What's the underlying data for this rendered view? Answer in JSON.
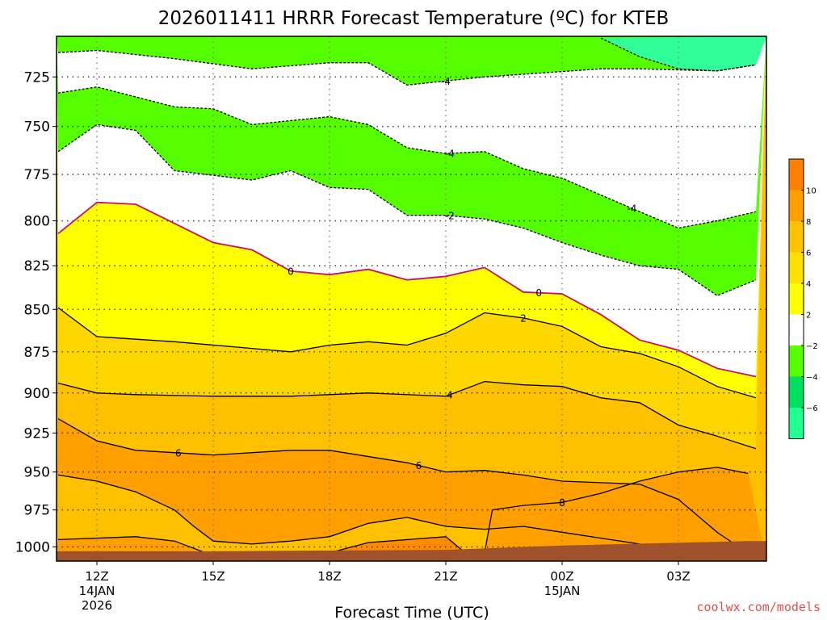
{
  "chart_data": {
    "type": "heatmap",
    "title": "2026011411 HRRR Forecast Temperature (ºC) for KTEB",
    "xlabel": "Forecast Time (UTC)",
    "ylabel": "",
    "x_ticks": [
      {
        "hour": 0,
        "label": "12Z",
        "sublabels": [
          "14JAN",
          "2026"
        ]
      },
      {
        "hour": 3,
        "label": "15Z",
        "sublabels": []
      },
      {
        "hour": 6,
        "label": "18Z",
        "sublabels": []
      },
      {
        "hour": 9,
        "label": "21Z",
        "sublabels": []
      },
      {
        "hour": 12,
        "label": "00Z",
        "sublabels": [
          "15JAN"
        ]
      },
      {
        "hour": 15,
        "label": "03Z",
        "sublabels": []
      }
    ],
    "xlim": [
      -1,
      17
    ],
    "y_ticks": [
      725,
      750,
      775,
      800,
      825,
      850,
      875,
      900,
      925,
      950,
      975,
      1000
    ],
    "ylim": [
      706,
      1008
    ],
    "y_scale": "log",
    "grid": true,
    "series": [
      {
        "name": "-4",
        "points": [
          [
            -1,
            713
          ],
          [
            0,
            712
          ],
          [
            2,
            716
          ],
          [
            4,
            721
          ],
          [
            6,
            718
          ],
          [
            7,
            718
          ],
          [
            8,
            729
          ],
          [
            9,
            727
          ],
          [
            10,
            725
          ],
          [
            13,
            721
          ],
          [
            14,
            721
          ],
          [
            16,
            722
          ],
          [
            17,
            719
          ]
        ]
      },
      {
        "name": "-4",
        "points": [
          [
            13,
            706
          ],
          [
            14,
            715
          ],
          [
            15,
            721
          ],
          [
            16,
            722
          ],
          [
            17,
            719
          ]
        ]
      },
      {
        "name": "-4",
        "points": [
          [
            -1,
            733
          ],
          [
            0,
            730
          ],
          [
            2,
            740
          ],
          [
            3,
            741
          ],
          [
            4,
            749
          ],
          [
            5,
            747
          ],
          [
            6,
            745
          ],
          [
            7,
            749
          ],
          [
            8,
            761
          ],
          [
            9,
            764
          ],
          [
            10,
            763
          ],
          [
            11,
            772
          ],
          [
            12,
            777
          ],
          [
            13,
            786
          ],
          [
            14,
            795
          ],
          [
            15,
            804
          ],
          [
            16,
            800
          ],
          [
            17,
            795
          ]
        ]
      },
      {
        "name": "-2",
        "points": [
          [
            -1,
            763
          ],
          [
            0,
            749
          ],
          [
            1,
            752
          ],
          [
            2,
            773
          ],
          [
            4,
            778
          ],
          [
            5,
            773
          ],
          [
            6,
            782
          ],
          [
            7,
            783
          ],
          [
            8,
            797
          ],
          [
            9,
            797
          ],
          [
            10,
            799
          ],
          [
            11,
            804
          ],
          [
            12,
            812
          ],
          [
            13,
            819
          ],
          [
            14,
            825
          ],
          [
            15,
            827
          ],
          [
            16,
            842
          ],
          [
            17,
            833
          ]
        ]
      },
      {
        "name": "0",
        "points": [
          [
            -1,
            807
          ],
          [
            0,
            790
          ],
          [
            1,
            791
          ],
          [
            3,
            812
          ],
          [
            4,
            816
          ],
          [
            5,
            828
          ],
          [
            6,
            830
          ],
          [
            7,
            827
          ],
          [
            8,
            833
          ],
          [
            9,
            831
          ],
          [
            10,
            826
          ],
          [
            11,
            840
          ],
          [
            12,
            841
          ],
          [
            13,
            853
          ],
          [
            14,
            868
          ],
          [
            15,
            874
          ],
          [
            16,
            885
          ],
          [
            17,
            890
          ]
        ]
      },
      {
        "name": "2",
        "points": [
          [
            -1,
            849
          ],
          [
            0,
            866
          ],
          [
            2,
            869
          ],
          [
            4,
            873
          ],
          [
            5,
            875
          ],
          [
            6,
            871
          ],
          [
            7,
            869
          ],
          [
            8,
            871
          ],
          [
            9,
            864
          ],
          [
            10,
            852
          ],
          [
            11,
            855
          ],
          [
            12,
            860
          ],
          [
            13,
            872
          ],
          [
            14,
            876
          ],
          [
            15,
            884
          ],
          [
            16,
            896
          ],
          [
            17,
            903
          ]
        ]
      },
      {
        "name": "4",
        "points": [
          [
            -1,
            894
          ],
          [
            0,
            900
          ],
          [
            1,
            901
          ],
          [
            3,
            902
          ],
          [
            5,
            902
          ],
          [
            7,
            900
          ],
          [
            9,
            902
          ],
          [
            10,
            893
          ],
          [
            11,
            895
          ],
          [
            12,
            896
          ],
          [
            13,
            903
          ],
          [
            14,
            906
          ],
          [
            15,
            920
          ],
          [
            16,
            927
          ],
          [
            17,
            935
          ]
        ]
      },
      {
        "name": "6",
        "points": [
          [
            -1,
            916
          ],
          [
            0,
            930
          ],
          [
            1,
            936
          ],
          [
            3,
            939
          ],
          [
            5,
            936
          ],
          [
            6,
            936
          ],
          [
            8,
            944
          ],
          [
            9,
            950
          ],
          [
            10,
            949
          ],
          [
            11,
            952
          ],
          [
            12,
            956
          ],
          [
            14,
            958
          ],
          [
            15,
            968
          ],
          [
            16,
            990
          ],
          [
            17,
            1008
          ]
        ]
      },
      {
        "name": "8",
        "points": [
          [
            -1,
            952
          ],
          [
            0,
            956
          ],
          [
            1,
            963
          ],
          [
            2,
            975
          ],
          [
            2.5,
            986
          ],
          [
            3,
            996
          ],
          [
            4,
            998
          ],
          [
            5,
            996
          ],
          [
            6,
            993
          ],
          [
            7,
            984
          ],
          [
            8,
            980
          ],
          [
            9,
            986
          ],
          [
            10,
            988
          ],
          [
            11,
            986
          ],
          [
            12,
            990
          ],
          [
            13,
            994
          ],
          [
            14,
            998
          ],
          [
            15,
            1004
          ],
          [
            16,
            1008
          ]
        ]
      },
      {
        "name": "8",
        "points": [
          [
            -1,
            995
          ],
          [
            0,
            994
          ],
          [
            1,
            993
          ],
          [
            2,
            996
          ],
          [
            3,
            1006
          ]
        ]
      },
      {
        "name": "8",
        "points": [
          [
            6,
            1004
          ],
          [
            7,
            997
          ],
          [
            9,
            993
          ],
          [
            9.5,
            1004
          ]
        ]
      },
      {
        "name": "8",
        "points": [
          [
            10,
            1004
          ],
          [
            10.2,
            975
          ],
          [
            11,
            972
          ],
          [
            12,
            970
          ],
          [
            13,
            964
          ],
          [
            14,
            956
          ],
          [
            15,
            950
          ],
          [
            16,
            947
          ],
          [
            16.8,
            951
          ]
        ]
      }
    ],
    "legend": {
      "placement": "right",
      "tick_labels": [
        "10",
        "8",
        "6",
        "4",
        "2",
        "−2",
        "−4",
        "−6"
      ],
      "colors": [
        "#ff8000",
        "#ffa000",
        "#ffc000",
        "#ffe000",
        "#ffff00",
        "#ffffff",
        "#55ff00",
        "#00e060",
        "#20ff90"
      ]
    },
    "region_colors": {
      "lt_neg6": "#30ff99",
      "neg6_neg4": "#00e060",
      "neg4_neg2": "#55ff00",
      "neg2_2": "#ffffff",
      "2_4": "#ffff00",
      "4_6": "#ffd700",
      "6_8": "#ffc000",
      "8_10": "#ffa000",
      "gt_10": "#ff8c00",
      "ground": "#a0522d"
    }
  },
  "watermark": "coolwx.com/models"
}
